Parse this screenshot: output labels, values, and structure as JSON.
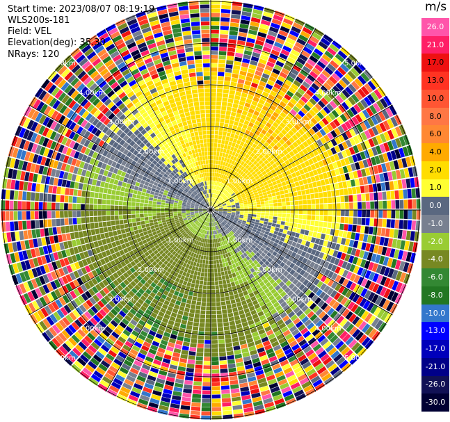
{
  "header": {
    "start_time": "Start time: 2023/08/07 08:19:19",
    "instrument": "WLS200s-181",
    "field": "Field: VEL",
    "elevation": "Elevation(deg): 35.30",
    "nrays": "NRays: 120"
  },
  "colorbar": {
    "unit": "m/s",
    "ticks": [
      "26.0",
      "21.0",
      "17.0",
      "13.0",
      "10.0",
      "8.0",
      "6.0",
      "4.0",
      "2.0",
      "1.0",
      "0.0",
      "-1.0",
      "-2.0",
      "-4.0",
      "-6.0",
      "-8.0",
      "-10.0",
      "-13.0",
      "-17.0",
      "-21.0",
      "-26.0",
      "-30.0"
    ],
    "colors": [
      "#ff55aa",
      "#ff1f66",
      "#ee1111",
      "#ff3322",
      "#ff5533",
      "#ff7744",
      "#ff8833",
      "#ffaa00",
      "#ffdd00",
      "#ffff33",
      "#5a6880",
      "#788090",
      "#99cc33",
      "#778822",
      "#338833",
      "#227722",
      "#3377cc",
      "#0000ff",
      "#0000bb",
      "#000088",
      "#111155",
      "#000033"
    ]
  },
  "chart_data": {
    "type": "heatmap",
    "projection": "polar PPI",
    "field": "VEL",
    "rays": 120,
    "range_rings_km": [
      1.0,
      2.0,
      3.0,
      4.0,
      5.0
    ],
    "range_ring_labels": [
      "1.00km",
      "2.00km",
      "3.00km",
      "4.00km",
      "5.00km"
    ],
    "radial_lines_deg": [
      0,
      30,
      60,
      90,
      120,
      150,
      180,
      210,
      240,
      270,
      300,
      330
    ],
    "grid": true
  }
}
